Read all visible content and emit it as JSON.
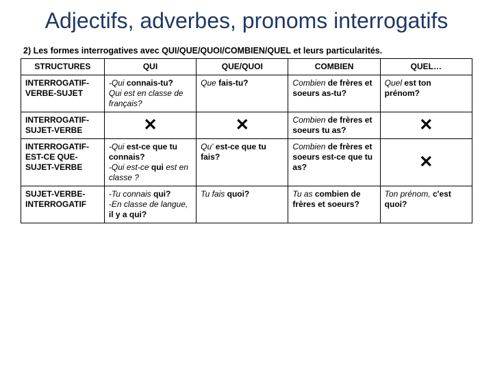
{
  "title": "Adjectifs, adverbes, pronoms interrogatifs",
  "subheading": "2) Les formes interrogatives avec QUI/QUE/QUOI/COMBIEN/QUEL et leurs particularités.",
  "headers": {
    "structures": "STRUCTURES",
    "qui": "QUI",
    "que": "QUE/QUOI",
    "combien": "COMBIEN",
    "quel": "QUEL…"
  },
  "rows": {
    "r1": {
      "label": "INTERROGATIF-VERBE-SUJET",
      "qui_l1a": "-Qui ",
      "qui_l1b": "connais-tu?",
      "qui_l2": "Qui est en classe de français?",
      "que_a": "Que ",
      "que_b": "fais-tu?",
      "comb_a": "Combien ",
      "comb_b": "de frères et soeurs as-tu?",
      "quel_a": "Quel ",
      "quel_b": "est ton prénom?"
    },
    "r2": {
      "label": "INTERROGATIF-SUJET-VERBE",
      "comb_a": "Combien ",
      "comb_b": "de frères et soeurs tu as?"
    },
    "r3": {
      "label": "INTERROGATIF-EST-CE QUE-SUJET-VERBE",
      "qui_l1a": "-Qui ",
      "qui_l1b": "est-ce que tu connais?",
      "qui_l2a": "-Qui est-ce ",
      "qui_l2b": "qui",
      "qui_l2c": " est en classe ?",
      "que_a": "Qu' ",
      "que_b": "est-ce que tu fais?",
      "comb_a": "Combien ",
      "comb_b": "de frères et soeurs est-ce que tu as?"
    },
    "r4": {
      "label": "SUJET-VERBE-INTERROGATIF",
      "qui_l1a": "-Tu connais ",
      "qui_l1b": "qui?",
      "qui_l2a": "-En classe de langue, ",
      "qui_l2b": "il y a qui?",
      "que_a": "Tu fais ",
      "que_b": "quoi?",
      "comb_a": "Tu as ",
      "comb_b": "combien de frères et soeurs?",
      "quel_a": "Ton prénom, ",
      "quel_b": "c'est quoi?"
    }
  },
  "x": "✕",
  "colors": {
    "title": "#1f3864",
    "border": "#000000",
    "background": "#ffffff"
  },
  "fonts": {
    "title_size": 32,
    "body_size": 12,
    "subhead_size": 12.5
  }
}
